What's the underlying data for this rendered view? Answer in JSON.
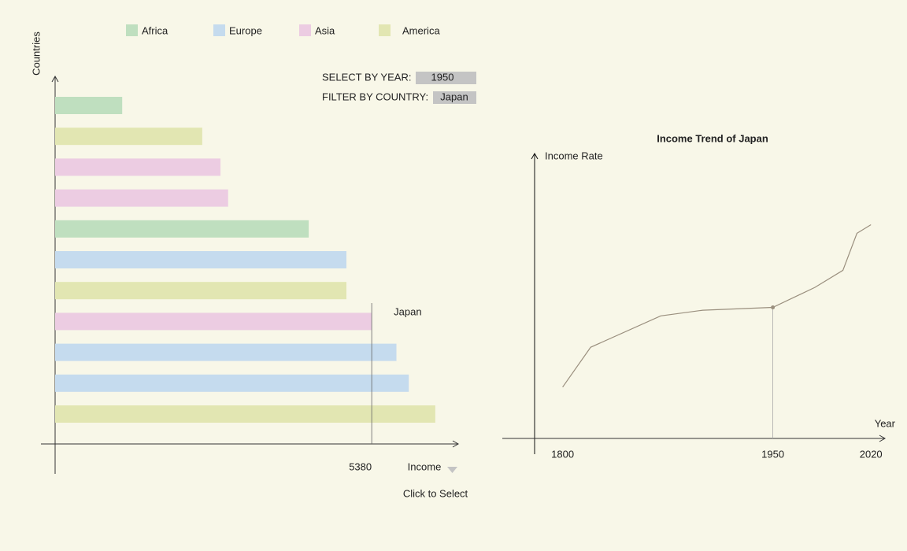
{
  "chart_data": [
    {
      "type": "bar",
      "orientation": "horizontal",
      "y_label": "Countries",
      "x_label": "Income",
      "hint": "Click to Select",
      "categories": [
        null,
        null,
        null,
        null,
        null,
        null,
        null,
        null,
        null,
        null,
        null
      ],
      "series": [
        {
          "name": "Africa",
          "color": "#bfdfbf",
          "values": [
            1140,
            null,
            null,
            null,
            4310,
            null,
            null,
            null,
            null,
            null,
            null
          ]
        },
        {
          "name": "Europe",
          "color": "#c5dbee",
          "values": [
            null,
            null,
            null,
            null,
            null,
            4950,
            null,
            null,
            5800,
            6010,
            null
          ]
        },
        {
          "name": "Asia",
          "color": "#ecccE2",
          "values": [
            null,
            null,
            2810,
            2940,
            null,
            null,
            null,
            5380,
            null,
            null,
            null
          ]
        },
        {
          "name": "America",
          "color": "#e2e6b2",
          "values": [
            null,
            2500,
            null,
            null,
            null,
            null,
            4950,
            null,
            null,
            null,
            6460
          ]
        }
      ],
      "xlim": [
        0,
        6850
      ],
      "reference": {
        "value": 5380,
        "label": "Japan"
      }
    },
    {
      "type": "line",
      "title": "Income Trend of Japan",
      "x_label": "Year",
      "y_label": "Income Rate",
      "x": [
        1800,
        1820,
        1870,
        1900,
        1950,
        1980,
        2000,
        2010,
        2020
      ],
      "values": [
        18,
        32,
        43,
        45,
        46,
        53,
        59,
        72,
        75
      ],
      "color": "#9a8f7e",
      "xlim": [
        1780,
        2030
      ],
      "xticks": [
        1800,
        1950,
        2020
      ],
      "ylim": [
        0,
        100
      ]
    }
  ],
  "controls": {
    "year_label": "SELECT BY YEAR:",
    "year": 1950,
    "country_label": "FILTER BY COUNTRY:",
    "country": "Japan"
  }
}
